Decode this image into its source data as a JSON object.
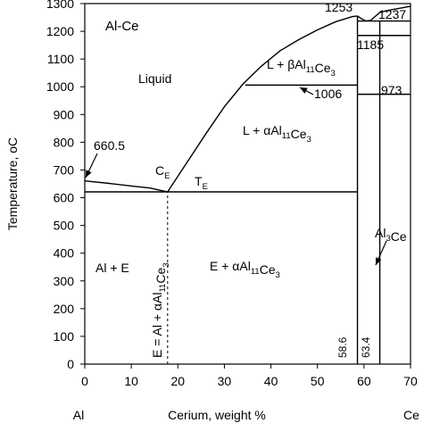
{
  "chart_data": {
    "type": "phase_diagram",
    "title": "Al-Ce",
    "xlabel": "Cerium, weight %",
    "ylabel": "Temperature, oC",
    "x_end_labels": {
      "left": "Al",
      "right": "Ce"
    },
    "xlim": [
      0,
      70
    ],
    "ylim": [
      0,
      1300
    ],
    "xticks": [
      0,
      10,
      20,
      30,
      40,
      50,
      60,
      70
    ],
    "yticks": [
      0,
      100,
      200,
      300,
      400,
      500,
      600,
      700,
      800,
      900,
      1000,
      1100,
      1200,
      1300
    ],
    "grid": false,
    "boundaries": [
      {
        "name": "Al liquidus",
        "x": [
          0,
          5,
          10,
          14,
          17.8
        ],
        "y": [
          660.5,
          652,
          642,
          635,
          621
        ]
      },
      {
        "name": "alphaAl11Ce3 liquidus",
        "x": [
          17.8,
          22,
          26,
          30,
          34,
          38,
          42,
          46,
          50,
          54,
          57.5,
          58.6
        ],
        "y": [
          621,
          728,
          830,
          928,
          1010,
          1075,
          1130,
          1170,
          1205,
          1235,
          1253,
          1255
        ]
      },
      {
        "name": "Al3Ce liquidus",
        "x": [
          58.6,
          59.5,
          60.5,
          61.5,
          62.5,
          63.4,
          65,
          70
        ],
        "y": [
          1255,
          1245,
          1237,
          1240,
          1255,
          1268,
          1275,
          1290
        ]
      },
      {
        "name": "eutectic isotherm",
        "x": [
          0,
          58.6
        ],
        "y": [
          621,
          621
        ]
      },
      {
        "name": "beta-alpha transition",
        "x": [
          34.5,
          58.6
        ],
        "y": [
          1006,
          1006
        ]
      },
      {
        "name": "transition at 973",
        "x": [
          58.6,
          70
        ],
        "y": [
          973,
          973
        ]
      },
      {
        "name": "peritectic 1237",
        "x": [
          58.6,
          70
        ],
        "y": [
          1237,
          1237
        ]
      },
      {
        "name": "transition at 1185",
        "x": [
          58.6,
          70
        ],
        "y": [
          1185,
          1185
        ]
      },
      {
        "name": "Al11Ce3 line",
        "x": [
          58.6,
          58.6
        ],
        "y": [
          0,
          1255
        ]
      },
      {
        "name": "Al3Ce line",
        "x": [
          63.4,
          63.4
        ],
        "y": [
          0,
          1237
        ]
      },
      {
        "name": "eutectic composition",
        "x": [
          17.8,
          17.8
        ],
        "y": [
          0,
          621
        ],
        "dashed": true
      }
    ],
    "annotations": {
      "title": "Al-Ce",
      "liquid": "Liquid",
      "melting_al": "660.5",
      "t1253": "1253",
      "t1237": "1237",
      "t1185": "1185",
      "t973": "973",
      "t1006": "1006",
      "c58": "58.6",
      "c63": "63.4",
      "ce": {
        "main": "C",
        "sub": "E"
      },
      "te": {
        "main": "T",
        "sub": "E"
      },
      "beta": {
        "prefix": "L + βAl",
        "sub1": "11",
        "mid": "Ce",
        "sub2": "3"
      },
      "alpha": {
        "prefix": "L + αAl",
        "sub1": "11",
        "mid": "Ce",
        "sub2": "3"
      },
      "al3ce": {
        "prefix": "Al",
        "sub1": "3",
        "mid": "Ce"
      },
      "ale": "Al + E",
      "ealpha": {
        "prefix": "E + αAl",
        "sub1": "11",
        "mid": "Ce",
        "sub2": "3"
      },
      "eut_comp": {
        "prefix": "E = Al + αAl",
        "sub1": "11",
        "mid": "Ce",
        "sub2": "3"
      }
    }
  }
}
